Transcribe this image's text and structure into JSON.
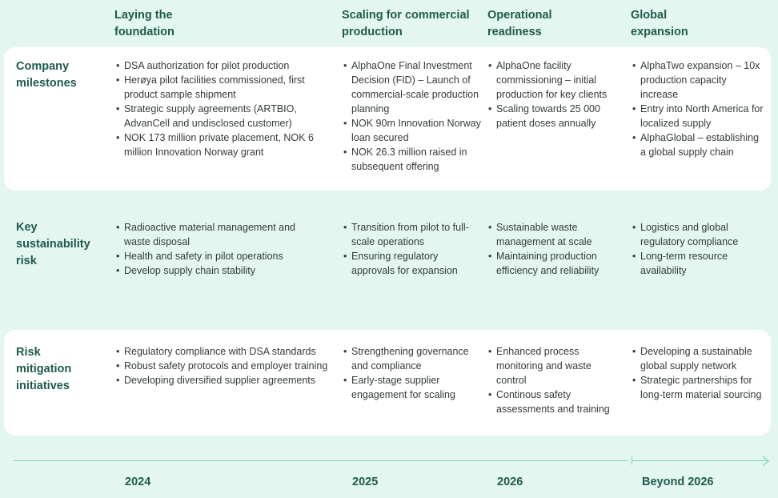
{
  "columns": [
    {
      "title": "Laying the foundation"
    },
    {
      "title": "Scaling for commercial production"
    },
    {
      "title": "Operational readiness"
    },
    {
      "title": "Global expansion"
    }
  ],
  "rows": [
    {
      "label": "Company milestones",
      "cells": [
        [
          "DSA authorization for pilot production",
          "Herøya pilot facilities commissioned, first product sample shipment",
          "Strategic supply agreements (ARTBIO, AdvanCell and undisclosed customer)",
          "NOK 173 million private placement, NOK 6 million Innovation Norway grant"
        ],
        [
          "AlphaOne Final Investment Decision (FID) – Launch of commercial-scale production planning",
          "NOK 90m Innovation Norway loan secured",
          "NOK 26.3 million raised in subsequent offering"
        ],
        [
          "AlphaOne facility commissioning – initial production for key clients",
          "Scaling towards 25 000 patient doses annually"
        ],
        [
          "AlphaTwo expansion – 10x production capacity increase",
          "Entry into North America for localized supply",
          "AlphaGlobal – establishing a global supply chain"
        ]
      ]
    },
    {
      "label": "Key sustainability risk",
      "cells": [
        [
          "Radioactive material management and waste disposal",
          "Health and safety in pilot operations",
          "Develop supply chain stability"
        ],
        [
          "Transition from pilot to full-scale operations",
          "Ensuring regulatory approvals for expansion"
        ],
        [
          "Sustainable waste management at scale",
          "Maintaining production efficiency and reliability"
        ],
        [
          "Logistics and global regulatory compliance",
          "Long-term resource availability"
        ]
      ]
    },
    {
      "label": "Risk mitigation initiatives",
      "cells": [
        [
          "Regulatory compliance with DSA standards",
          "Robust safety protocols and employer training",
          "Developing diversified supplier agreements"
        ],
        [
          "Strengthening governance and compliance",
          "Early-stage supplier engagement for scaling"
        ],
        [
          "Enhanced process monitoring and waste control",
          "Continous safety assessments and training"
        ],
        [
          "Developing a sustainable global supply network",
          "Strategic partnerships for long-term material sourcing"
        ]
      ]
    }
  ],
  "timeline": {
    "years": [
      "2024",
      "2025",
      "2026",
      "Beyond 2026"
    ],
    "accent": "#7fd8bb"
  },
  "colors": {
    "background": "#e3f6ef",
    "panel": "#ffffff",
    "heading": "#1f5a4d"
  }
}
